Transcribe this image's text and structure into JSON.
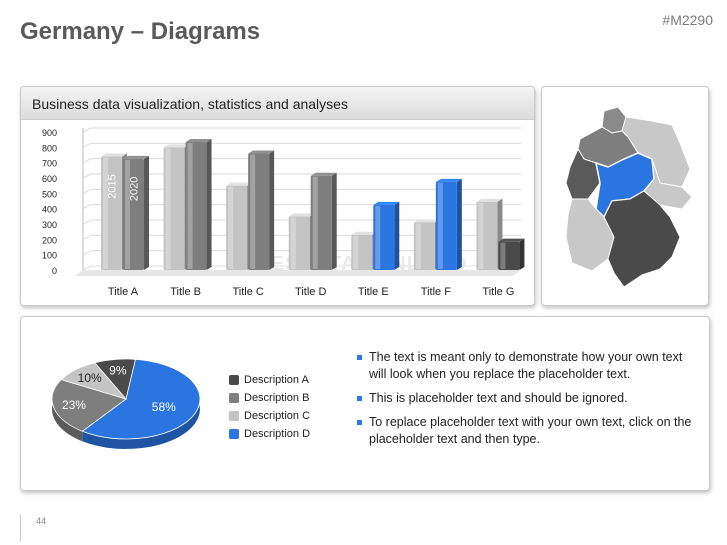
{
  "slide": {
    "title": "Germany – Diagrams",
    "id": "#M2290",
    "page_number": "44"
  },
  "chart_panel": {
    "header": "Business data visualization, statistics and analyses",
    "watermark": "PRESENTATIONLOAD"
  },
  "colors": {
    "light_gray": "#c4c4c4",
    "mid_gray": "#7e7e7e",
    "dark_gray": "#4a4a4a",
    "blue": "#2a75e0",
    "accent_bullet": "#2a7ae2"
  },
  "chart_data": [
    {
      "type": "bar",
      "categories": [
        "Title A",
        "Title B",
        "Title C",
        "Title D",
        "Title E",
        "Title F",
        "Title G"
      ],
      "series": [
        {
          "name": "2015",
          "values": [
            740,
            800,
            550,
            350,
            230,
            310,
            445
          ]
        },
        {
          "name": "2020",
          "values": [
            725,
            835,
            760,
            615,
            425,
            575,
            185
          ]
        }
      ],
      "bar_colors": [
        [
          "#c4c4c4",
          "#7e7e7e"
        ],
        [
          "#c4c4c4",
          "#7e7e7e"
        ],
        [
          "#c4c4c4",
          "#7e7e7e"
        ],
        [
          "#c4c4c4",
          "#7e7e7e"
        ],
        [
          "#c4c4c4",
          "#2a75e0"
        ],
        [
          "#c4c4c4",
          "#2a75e0"
        ],
        [
          "#c4c4c4",
          "#4a4a4a"
        ]
      ],
      "ylim": [
        0,
        900
      ],
      "yticks": [
        0,
        100,
        200,
        300,
        400,
        500,
        600,
        700,
        800,
        900
      ],
      "grid": true,
      "xlabel": "",
      "ylabel": ""
    },
    {
      "type": "pie",
      "labels": [
        "Description A",
        "Description B",
        "Description C",
        "Description D"
      ],
      "values": [
        9,
        23,
        10,
        58
      ],
      "data_labels": [
        "9%",
        "23%",
        "10%",
        "58%"
      ],
      "colors": [
        "#4a4a4a",
        "#7e7e7e",
        "#c4c4c4",
        "#2a75e0"
      ],
      "legend_position": "right"
    }
  ],
  "bullets": [
    "The text is meant only to demonstrate how your own text will look when you replace the placeholder text.",
    "This is placeholder text and should be ignored.",
    "To replace placeholder text with your own text, click on the placeholder text and then type."
  ]
}
